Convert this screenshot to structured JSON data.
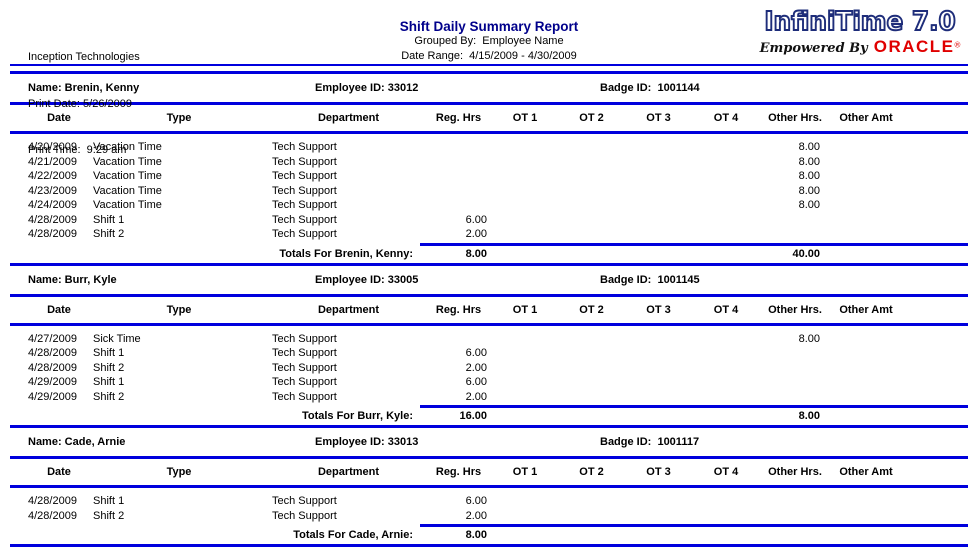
{
  "page": {
    "company": "Inception Technologies",
    "print_date": "Print Date: 5/26/2009",
    "print_time": "Print Time:  9:29 am",
    "title": "Shift Daily Summary Report",
    "grouped_by": "Grouped By:  Employee Name",
    "date_range": "Date Range:  4/15/2009 - 4/30/2009"
  },
  "logo": {
    "product": "InfiniTime 7.0",
    "tagline": "Empowered By",
    "brand": "ORACLE",
    "registered": "®"
  },
  "colors": {
    "line_blue": "#0000dd",
    "title_navy": "#00008b",
    "oracle_red": "#e00000"
  },
  "columns": [
    "Date",
    "Type",
    "Department",
    "Reg. Hrs",
    "OT 1",
    "OT 2",
    "OT 3",
    "OT 4",
    "Other Hrs.",
    "Other Amt"
  ],
  "employees": [
    {
      "name": "Name: Brenin, Kenny",
      "employee_id": "Employee ID: 33012",
      "badge_id": "Badge ID:  1001144",
      "rows": [
        {
          "date": "4/20/2009",
          "type": "Vacation Time",
          "department": "Tech Support",
          "other_hrs": "8.00"
        },
        {
          "date": "4/21/2009",
          "type": "Vacation Time",
          "department": "Tech Support",
          "other_hrs": "8.00"
        },
        {
          "date": "4/22/2009",
          "type": "Vacation Time",
          "department": "Tech Support",
          "other_hrs": "8.00"
        },
        {
          "date": "4/23/2009",
          "type": "Vacation Time",
          "department": "Tech Support",
          "other_hrs": "8.00"
        },
        {
          "date": "4/24/2009",
          "type": "Vacation Time",
          "department": "Tech Support",
          "other_hrs": "8.00"
        },
        {
          "date": "4/28/2009",
          "type": "Shift 1",
          "department": "Tech Support",
          "reg_hrs": "6.00"
        },
        {
          "date": "4/28/2009",
          "type": "Shift 2",
          "department": "Tech Support",
          "reg_hrs": "2.00"
        }
      ],
      "totals": {
        "label": "Totals For Brenin, Kenny:",
        "reg_hrs": "8.00",
        "other_hrs": "40.00"
      }
    },
    {
      "name": "Name: Burr, Kyle",
      "employee_id": "Employee ID: 33005",
      "badge_id": "Badge ID:  1001145",
      "rows": [
        {
          "date": "4/27/2009",
          "type": "Sick Time",
          "department": "Tech Support",
          "other_hrs": "8.00"
        },
        {
          "date": "4/28/2009",
          "type": "Shift 1",
          "department": "Tech Support",
          "reg_hrs": "6.00"
        },
        {
          "date": "4/28/2009",
          "type": "Shift 2",
          "department": "Tech Support",
          "reg_hrs": "2.00"
        },
        {
          "date": "4/29/2009",
          "type": "Shift 1",
          "department": "Tech Support",
          "reg_hrs": "6.00"
        },
        {
          "date": "4/29/2009",
          "type": "Shift 2",
          "department": "Tech Support",
          "reg_hrs": "2.00"
        }
      ],
      "totals": {
        "label": "Totals For Burr, Kyle:",
        "reg_hrs": "16.00",
        "other_hrs": "8.00"
      }
    },
    {
      "name": "Name: Cade, Arnie",
      "employee_id": "Employee ID: 33013",
      "badge_id": "Badge ID:  1001117",
      "rows": [
        {
          "date": "4/28/2009",
          "type": "Shift 1",
          "department": "Tech Support",
          "reg_hrs": "6.00"
        },
        {
          "date": "4/28/2009",
          "type": "Shift 2",
          "department": "Tech Support",
          "reg_hrs": "2.00"
        }
      ],
      "totals": {
        "label": "Totals For Cade, Arnie:",
        "reg_hrs": "8.00"
      }
    }
  ]
}
